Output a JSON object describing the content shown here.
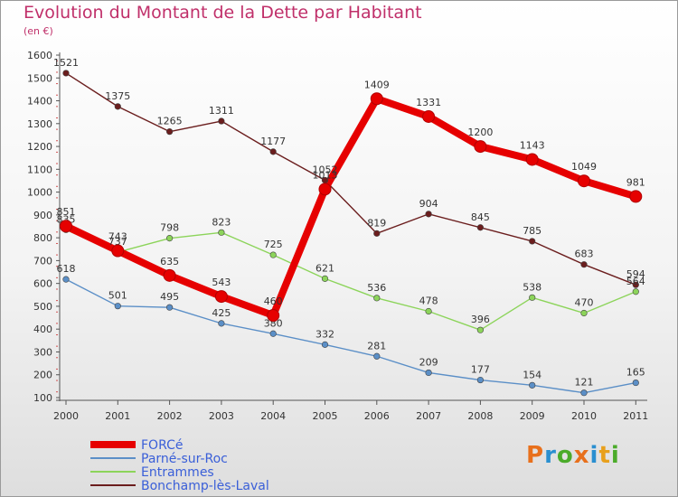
{
  "header": {
    "title": "Evolution du Montant de la Dette par Habitant",
    "unit": "(en €)"
  },
  "logo": {
    "text": "Proxiti",
    "colors": [
      "#e8701c",
      "#2a8fd0",
      "#4bab2a",
      "#e8701c",
      "#2a8fd0",
      "#e8a01c",
      "#4bab2a"
    ]
  },
  "chart_data": {
    "type": "line",
    "title": "Evolution du Montant de la Dette par Habitant",
    "ylabel": "(en €)",
    "xlabel": "",
    "x": [
      "2000",
      "2001",
      "2002",
      "2003",
      "2004",
      "2005",
      "2006",
      "2007",
      "2008",
      "2009",
      "2010",
      "2011"
    ],
    "ylim": [
      100,
      1600
    ],
    "yticks": [
      100,
      200,
      300,
      400,
      500,
      600,
      700,
      800,
      900,
      1000,
      1100,
      1200,
      1300,
      1400,
      1500,
      1600
    ],
    "grid": false,
    "legend_position": "bottom-left",
    "series": [
      {
        "name": "Bonchamp-lès-Laval",
        "color": "#6b1e1e",
        "values": [
          1521,
          1375,
          1265,
          1311,
          1177,
          1052,
          819,
          904,
          845,
          785,
          683,
          594
        ],
        "labels": [
          "1521",
          "1375",
          "1265",
          "1311",
          "1177",
          "1052",
          "819",
          "904",
          "845",
          "785",
          "683",
          "594"
        ]
      },
      {
        "name": "Entrammes",
        "color": "#8cd45a",
        "values": [
          835,
          737,
          798,
          823,
          725,
          621,
          536,
          478,
          396,
          538,
          470,
          564
        ],
        "labels": [
          "835",
          "737",
          "798",
          "823",
          "725",
          "621",
          "536",
          "478",
          "396",
          "538",
          "470",
          "564"
        ]
      },
      {
        "name": "Parné-sur-Roc",
        "color": "#5b8fc7",
        "values": [
          618,
          501,
          495,
          425,
          380,
          332,
          281,
          209,
          177,
          154,
          121,
          165
        ],
        "labels": [
          "618",
          "501",
          "495",
          "425",
          "380",
          "332",
          "281",
          "209",
          "177",
          "154",
          "121",
          "165"
        ]
      },
      {
        "name": "FORCé",
        "color": "#e60000",
        "values": [
          851,
          743,
          635,
          543,
          460,
          1013,
          1409,
          1331,
          1200,
          1143,
          1049,
          981
        ],
        "labels": [
          "851",
          "743",
          "635",
          "543",
          "460",
          "1013",
          "1409",
          "1331",
          "1200",
          "1143",
          "1049",
          "981"
        ]
      }
    ],
    "legend": [
      {
        "name": "FORCé",
        "color": "#e60000",
        "text_color": "#3a5fd8"
      },
      {
        "name": "Parné-sur-Roc",
        "color": "#5b8fc7",
        "text_color": "#3a5fd8"
      },
      {
        "name": "Entrammes",
        "color": "#8cd45a",
        "text_color": "#3a5fd8"
      },
      {
        "name": "Bonchamp-lès-Laval",
        "color": "#6b1e1e",
        "text_color": "#3a5fd8"
      }
    ]
  }
}
